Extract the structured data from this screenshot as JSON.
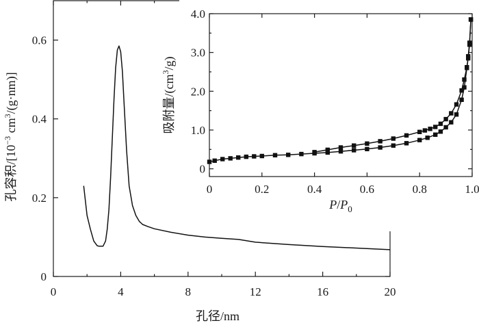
{
  "chart_data": [
    {
      "type": "line",
      "xlabel": "孔径/nm",
      "ylabel_prefix": "孔容积/[10",
      "ylabel_exp": "−3",
      "ylabel_mid": " cm",
      "ylabel_exp2": "3",
      "ylabel_suffix": "/(g·nm)]",
      "xlim": [
        0,
        20
      ],
      "ylim": [
        0,
        0.7
      ],
      "xticks": [
        0,
        4,
        8,
        12,
        16,
        20
      ],
      "xtick_labels": [
        "0",
        "4",
        "8",
        "12",
        "16",
        "20"
      ],
      "yticks": [
        0,
        0.2,
        0.4,
        0.6
      ],
      "ytick_labels": [
        "0",
        "0.2",
        "0.4",
        "0.6"
      ],
      "series": [
        {
          "x": [
            1.8,
            2.0,
            2.2,
            2.4,
            2.6,
            2.7,
            2.8,
            2.95,
            3.1,
            3.2,
            3.3,
            3.4,
            3.5,
            3.6,
            3.7,
            3.8,
            3.9,
            4.0,
            4.1,
            4.2,
            4.35,
            4.5,
            4.7,
            4.9,
            5.1,
            5.3,
            5.6,
            6.0,
            7.0,
            8.0,
            9.0,
            10.0,
            11.0,
            12.0,
            14.0,
            16.0,
            18.0,
            20.0
          ],
          "y": [
            0.23,
            0.155,
            0.12,
            0.09,
            0.078,
            0.077,
            0.077,
            0.077,
            0.09,
            0.12,
            0.17,
            0.25,
            0.35,
            0.45,
            0.53,
            0.575,
            0.585,
            0.57,
            0.52,
            0.44,
            0.32,
            0.23,
            0.18,
            0.155,
            0.14,
            0.132,
            0.127,
            0.121,
            0.112,
            0.105,
            0.1,
            0.097,
            0.094,
            0.087,
            0.081,
            0.076,
            0.072,
            0.068
          ]
        }
      ]
    },
    {
      "type": "line",
      "xlabel_P": "P",
      "xlabel_sep": "/",
      "xlabel_P0": "P",
      "xlabel_sub": "0",
      "ylabel_prefix": "吸附量/(cm",
      "ylabel_exp": "3",
      "ylabel_suffix": "/g)",
      "xlim": [
        0,
        1.0
      ],
      "ylim": [
        -0.2,
        4.0
      ],
      "xticks": [
        0,
        0.2,
        0.4,
        0.6,
        0.8,
        1.0
      ],
      "xtick_labels": [
        "0",
        "0.2",
        "0.4",
        "0.6",
        "0.8",
        "1.0"
      ],
      "yticks": [
        0,
        1.0,
        2.0,
        3.0,
        4.0
      ],
      "ytick_labels": [
        "0",
        "1.0",
        "2.0",
        "3.0",
        "4.0"
      ],
      "series": [
        {
          "x": [
            0.0,
            0.02,
            0.05,
            0.08,
            0.11,
            0.14,
            0.17,
            0.2,
            0.25,
            0.3,
            0.35,
            0.4,
            0.45,
            0.5,
            0.55,
            0.6,
            0.65,
            0.7,
            0.75,
            0.8,
            0.83,
            0.86,
            0.88,
            0.9,
            0.92,
            0.94,
            0.96,
            0.97,
            0.98,
            0.985,
            0.99,
            0.995
          ],
          "y": [
            0.18,
            0.21,
            0.25,
            0.27,
            0.29,
            0.31,
            0.32,
            0.33,
            0.35,
            0.36,
            0.38,
            0.4,
            0.42,
            0.45,
            0.48,
            0.51,
            0.55,
            0.6,
            0.66,
            0.74,
            0.8,
            0.88,
            0.96,
            1.07,
            1.2,
            1.4,
            1.78,
            2.1,
            2.6,
            2.9,
            3.25,
            3.85
          ]
        },
        {
          "x": [
            0.995,
            0.99,
            0.985,
            0.98,
            0.97,
            0.96,
            0.94,
            0.92,
            0.9,
            0.88,
            0.86,
            0.84,
            0.82,
            0.8,
            0.75,
            0.7,
            0.65,
            0.6,
            0.55,
            0.5,
            0.45,
            0.4
          ],
          "y": [
            3.85,
            3.2,
            2.85,
            2.62,
            2.3,
            2.02,
            1.66,
            1.43,
            1.28,
            1.16,
            1.08,
            1.03,
            0.99,
            0.95,
            0.86,
            0.78,
            0.71,
            0.65,
            0.6,
            0.55,
            0.49,
            0.43
          ]
        }
      ]
    }
  ]
}
